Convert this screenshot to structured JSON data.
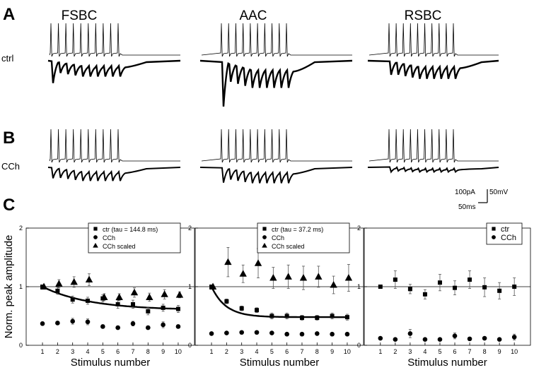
{
  "figure": {
    "panel_labels": [
      "A",
      "B",
      "C"
    ],
    "cell_types": [
      "FSBC",
      "AAC",
      "RSBC"
    ],
    "conditions": [
      "ctrl",
      "CCh"
    ],
    "scale_bar": {
      "current": "100pA",
      "voltage": "50mV",
      "time": "50ms"
    }
  },
  "chart_data": [
    {
      "type": "scatter",
      "cell": "FSBC",
      "xlabel": "Stimulus number",
      "ylabel": "Norm. peak amplitude",
      "xticks": [
        1,
        2,
        3,
        4,
        5,
        6,
        7,
        8,
        9,
        10
      ],
      "yticks": [
        0,
        1,
        2
      ],
      "ylim": [
        0,
        2
      ],
      "reference_line": 1,
      "legend_position": "top-right",
      "legend_labels": [
        "ctr (tau = 144.8 ms)",
        "CCh",
        "CCh scaled"
      ],
      "x": [
        1,
        2,
        3,
        4,
        5,
        6,
        7,
        8,
        9,
        10
      ],
      "series": [
        {
          "marker": "square",
          "values": [
            1.0,
            0.93,
            0.78,
            0.76,
            0.8,
            0.7,
            0.7,
            0.58,
            0.64,
            0.62
          ],
          "errors": [
            0.03,
            0.06,
            0.06,
            0.06,
            0.06,
            0.07,
            0.07,
            0.06,
            0.06,
            0.06
          ]
        },
        {
          "marker": "circle",
          "values": [
            0.37,
            0.38,
            0.41,
            0.4,
            0.32,
            0.3,
            0.37,
            0.3,
            0.35,
            0.32
          ],
          "errors": [
            0.03,
            0.03,
            0.05,
            0.05,
            0.03,
            0.03,
            0.04,
            0.03,
            0.05,
            0.03
          ]
        },
        {
          "marker": "triangle",
          "values": [
            1.0,
            1.05,
            1.08,
            1.12,
            0.82,
            0.82,
            0.9,
            0.82,
            0.87,
            0.86
          ],
          "errors": [
            0.03,
            0.07,
            0.09,
            0.1,
            0.06,
            0.06,
            0.08,
            0.07,
            0.08,
            0.05
          ]
        }
      ],
      "fit": {
        "series": "ctr",
        "tau_ms": 144.8,
        "start": 1.0,
        "plateau": 0.6
      }
    },
    {
      "type": "scatter",
      "cell": "AAC",
      "xlabel": "Stimulus number",
      "ylabel": "",
      "xticks": [
        1,
        2,
        3,
        4,
        5,
        6,
        7,
        8,
        9,
        10
      ],
      "yticks": [
        0,
        1,
        2
      ],
      "ylim": [
        0,
        2
      ],
      "reference_line": 1,
      "legend_position": "top-right",
      "legend_labels": [
        "ctr  (tau = 37.2 ms)",
        "CCh",
        "CCh scaled"
      ],
      "x": [
        1,
        2,
        3,
        4,
        5,
        6,
        7,
        8,
        9,
        10
      ],
      "series": [
        {
          "marker": "square",
          "values": [
            1.0,
            0.75,
            0.63,
            0.6,
            0.5,
            0.5,
            0.47,
            0.47,
            0.5,
            0.48
          ],
          "errors": [
            0.03,
            0.04,
            0.04,
            0.04,
            0.05,
            0.05,
            0.04,
            0.04,
            0.05,
            0.05
          ]
        },
        {
          "marker": "circle",
          "values": [
            0.2,
            0.21,
            0.22,
            0.22,
            0.21,
            0.19,
            0.19,
            0.2,
            0.19,
            0.19
          ],
          "errors": [
            0.02,
            0.02,
            0.02,
            0.02,
            0.02,
            0.02,
            0.02,
            0.02,
            0.02,
            0.02
          ]
        },
        {
          "marker": "triangle",
          "values": [
            1.0,
            1.42,
            1.22,
            1.4,
            1.15,
            1.17,
            1.15,
            1.17,
            1.03,
            1.15
          ],
          "errors": [
            0.03,
            0.25,
            0.15,
            0.25,
            0.18,
            0.2,
            0.2,
            0.18,
            0.15,
            0.23
          ]
        }
      ],
      "fit": {
        "series": "ctr",
        "tau_ms": 37.2,
        "start": 1.0,
        "plateau": 0.48
      }
    },
    {
      "type": "scatter",
      "cell": "RSBC",
      "xlabel": "Stimulus number",
      "ylabel": "",
      "xticks": [
        1,
        2,
        3,
        4,
        5,
        6,
        7,
        8,
        9,
        10
      ],
      "yticks": [
        0,
        1,
        2
      ],
      "ylim": [
        0,
        2
      ],
      "reference_line": 1,
      "legend_position": "top-right",
      "legend_labels": [
        "ctr",
        "CCh"
      ],
      "x": [
        1,
        2,
        3,
        4,
        5,
        6,
        7,
        8,
        9,
        10
      ],
      "series": [
        {
          "marker": "square",
          "values": [
            1.0,
            1.12,
            0.96,
            0.87,
            1.07,
            0.98,
            1.12,
            0.99,
            0.93,
            1.0
          ],
          "errors": [
            0.02,
            0.15,
            0.08,
            0.08,
            0.14,
            0.12,
            0.15,
            0.16,
            0.14,
            0.15
          ]
        },
        {
          "marker": "circle",
          "values": [
            0.12,
            0.1,
            0.2,
            0.1,
            0.1,
            0.16,
            0.11,
            0.12,
            0.1,
            0.14
          ],
          "errors": [
            0.02,
            0.02,
            0.07,
            0.02,
            0.02,
            0.05,
            0.02,
            0.02,
            0.02,
            0.05
          ]
        }
      ]
    }
  ]
}
